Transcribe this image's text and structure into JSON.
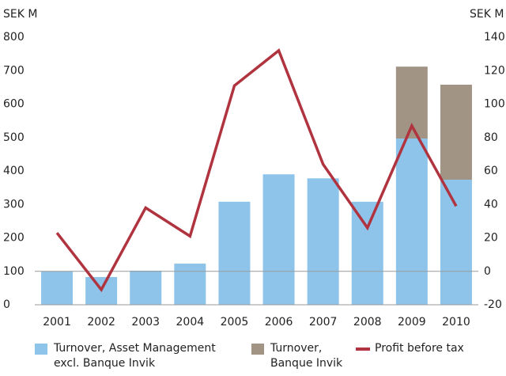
{
  "chart_data": {
    "type": "bar",
    "y_label": "SEK M",
    "y2_label": "SEK M",
    "categories": [
      "2001",
      "2002",
      "2003",
      "2004",
      "2005",
      "2006",
      "2007",
      "2008",
      "2009",
      "2010"
    ],
    "series": [
      {
        "name": "Turnover, Asset Management excl. Banque Invik",
        "color": "#8ec4ea",
        "type": "bar",
        "stack": true,
        "values": [
          100,
          83,
          102,
          123,
          308,
          390,
          378,
          308,
          497,
          374
        ]
      },
      {
        "name": "Turnover, Banque Invik",
        "color": "#a19484",
        "type": "bar",
        "stack": true,
        "values": [
          0,
          0,
          0,
          0,
          0,
          0,
          0,
          0,
          215,
          284
        ]
      },
      {
        "name": "Profit before tax",
        "color": "#b0343f",
        "type": "line",
        "axis": "y2",
        "values": [
          23,
          -11,
          38,
          21,
          111,
          132,
          64,
          26,
          87,
          39
        ]
      }
    ],
    "ylim": [
      0,
      800
    ],
    "yticks": [
      0,
      100,
      200,
      300,
      400,
      500,
      600,
      700,
      800
    ],
    "y2lim": [
      -20,
      140
    ],
    "y2ticks": [
      -20,
      0,
      20,
      40,
      60,
      80,
      100,
      120,
      140
    ],
    "legend": "bottom"
  }
}
